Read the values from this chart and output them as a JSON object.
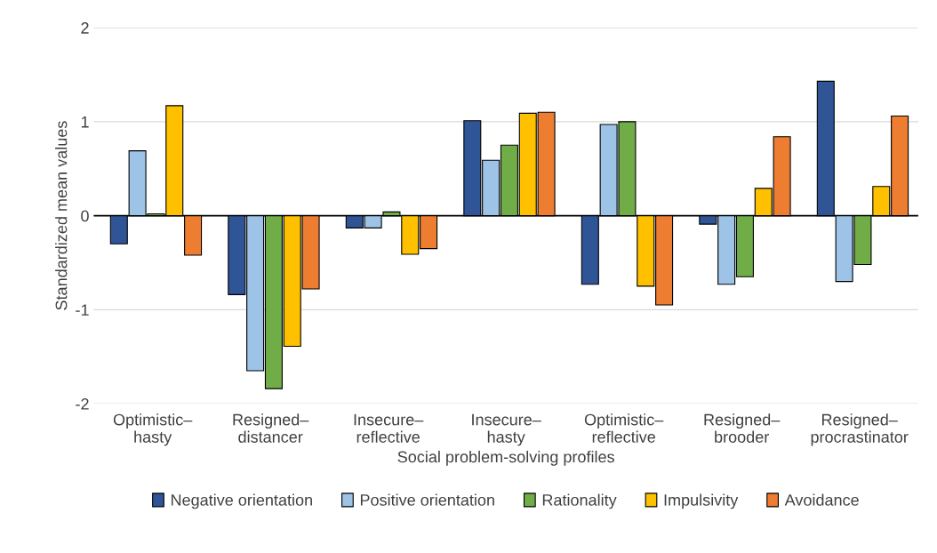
{
  "chart_data": {
    "type": "bar",
    "xlabel": "Social problem-solving profiles",
    "ylabel": "Standardized mean values",
    "categories": [
      "Optimistic–\nhasty",
      "Resigned–\ndistancer",
      "Insecure–\nreflective",
      "Insecure–\nhasty",
      "Optimistic–\nreflective",
      "Resigned–\nbrooder",
      "Resigned–\nprocrastinator"
    ],
    "series": [
      {
        "name": "Negative orientation",
        "color": "#2f5597",
        "values": [
          -0.3,
          -0.84,
          -0.13,
          1.01,
          -0.73,
          -0.09,
          1.43
        ]
      },
      {
        "name": "Positive orientation",
        "color": "#9dc3e6",
        "values": [
          0.69,
          -1.65,
          -0.13,
          0.59,
          0.97,
          -0.73,
          -0.7
        ]
      },
      {
        "name": "Rationality",
        "color": "#70ad47",
        "values": [
          0.02,
          -1.84,
          0.04,
          0.75,
          1.0,
          -0.65,
          -0.52
        ]
      },
      {
        "name": "Impulsivity",
        "color": "#ffc000",
        "values": [
          1.17,
          -1.39,
          -0.41,
          1.09,
          -0.75,
          0.29,
          0.31
        ]
      },
      {
        "name": "Avoidance",
        "color": "#ed7d31",
        "values": [
          -0.42,
          -0.78,
          -0.35,
          1.1,
          -0.95,
          0.84,
          1.06
        ]
      }
    ],
    "ylim": [
      -2,
      2
    ],
    "yticks": [
      -2,
      -1,
      0,
      1,
      2
    ],
    "grid": "y",
    "legend": "bottom"
  }
}
